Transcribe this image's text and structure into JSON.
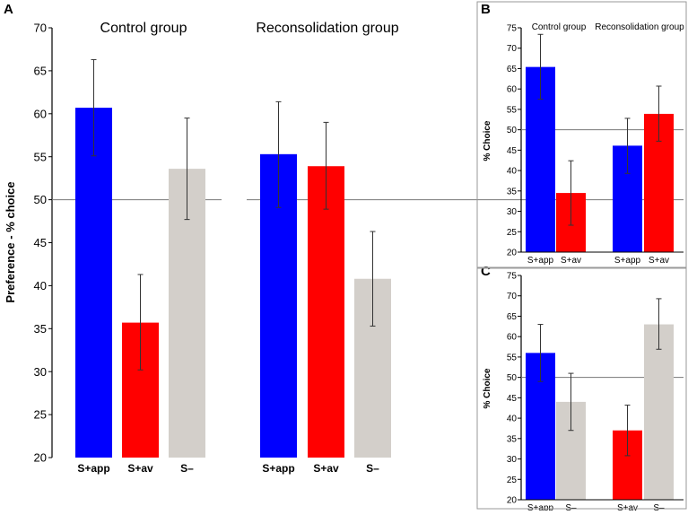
{
  "chart_data": [
    {
      "panel": "A",
      "type": "bar",
      "ylabel": "Preference - % choice",
      "ylim": [
        20,
        70
      ],
      "yticks": [
        20,
        25,
        30,
        35,
        40,
        45,
        50,
        55,
        60,
        65,
        70
      ],
      "reference_line": 50,
      "groups": [
        {
          "title": "Control group",
          "bars": [
            {
              "label": "S+app",
              "value": 60.7,
              "error_low": 55.1,
              "error_high": 66.3,
              "color": "#0000ff"
            },
            {
              "label": "S+av",
              "value": 35.7,
              "error_low": 30.2,
              "error_high": 41.3,
              "color": "#ff0000"
            },
            {
              "label": "S–",
              "value": 53.6,
              "error_low": 47.7,
              "error_high": 59.5,
              "color": "#d3cfca"
            }
          ]
        },
        {
          "title": "Reconsolidation group",
          "bars": [
            {
              "label": "S+app",
              "value": 55.3,
              "error_low": 49.1,
              "error_high": 61.4,
              "color": "#0000ff"
            },
            {
              "label": "S+av",
              "value": 53.9,
              "error_low": 48.9,
              "error_high": 59.0,
              "color": "#ff0000"
            },
            {
              "label": "S–",
              "value": 40.8,
              "error_low": 35.3,
              "error_high": 46.3,
              "color": "#d3cfca"
            }
          ]
        }
      ]
    },
    {
      "panel": "B",
      "type": "bar",
      "ylabel": "% Choice",
      "ylim": [
        20,
        75
      ],
      "yticks": [
        20,
        25,
        30,
        35,
        40,
        45,
        50,
        55,
        60,
        65,
        70,
        75
      ],
      "reference_line": 50,
      "groups": [
        {
          "title": "Control group",
          "bars": [
            {
              "label": "S+app",
              "value": 65.4,
              "error_low": 57.5,
              "error_high": 73.4,
              "color": "#0000ff"
            },
            {
              "label": "S+av",
              "value": 34.5,
              "error_low": 26.6,
              "error_high": 42.4,
              "color": "#ff0000"
            }
          ]
        },
        {
          "title": "Reconsolidation group",
          "bars": [
            {
              "label": "S+app",
              "value": 46.1,
              "error_low": 39.3,
              "error_high": 52.8,
              "color": "#0000ff"
            },
            {
              "label": "S+av",
              "value": 53.9,
              "error_low": 47.2,
              "error_high": 60.7,
              "color": "#ff0000"
            }
          ]
        }
      ]
    },
    {
      "panel": "C",
      "type": "bar",
      "ylabel": "% Choice",
      "ylim": [
        20,
        75
      ],
      "yticks": [
        20,
        25,
        30,
        35,
        40,
        45,
        50,
        55,
        60,
        65,
        70,
        75
      ],
      "reference_line": 50,
      "groups": [
        {
          "title": "",
          "bars": [
            {
              "label": "S+app",
              "value": 56.0,
              "error_low": 49.0,
              "error_high": 63.0,
              "color": "#0000ff"
            },
            {
              "label": "S–",
              "value": 44.0,
              "error_low": 37.0,
              "error_high": 51.0,
              "color": "#d3cfca"
            }
          ]
        },
        {
          "title": "",
          "bars": [
            {
              "label": "S+av",
              "value": 37.0,
              "error_low": 30.8,
              "error_high": 43.2,
              "color": "#ff0000"
            },
            {
              "label": "S–",
              "value": 63.0,
              "error_low": 56.9,
              "error_high": 69.3,
              "color": "#d3cfca"
            }
          ]
        }
      ]
    }
  ]
}
